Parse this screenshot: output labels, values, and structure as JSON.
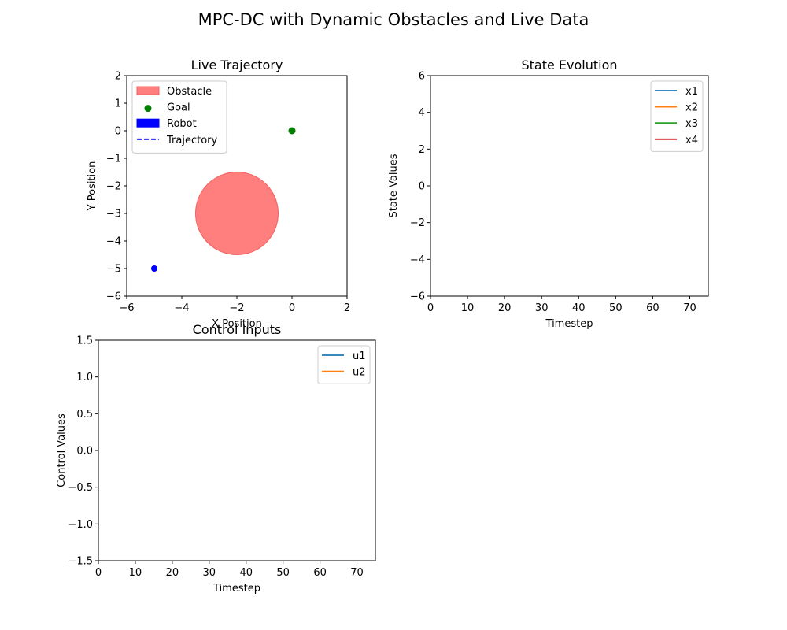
{
  "figure": {
    "suptitle": "MPC-DC with Dynamic Obstacles and Live Data"
  },
  "chart_data": [
    {
      "type": "scatter",
      "title": "Live Trajectory",
      "xlabel": "X Position",
      "ylabel": "Y Position",
      "xlim": [
        -6,
        2
      ],
      "ylim": [
        -6,
        2
      ],
      "xticks": [
        -6,
        -4,
        -2,
        0,
        2
      ],
      "yticks": [
        -6,
        -5,
        -4,
        -3,
        -2,
        -1,
        0,
        1,
        2
      ],
      "xtick_labels": [
        "−6",
        "−4",
        "−2",
        "0",
        "2"
      ],
      "ytick_labels": [
        "−6",
        "−5",
        "−4",
        "−3",
        "−2",
        "−1",
        "0",
        "1",
        "2"
      ],
      "obstacle": {
        "center": [
          -2,
          -3
        ],
        "radius": 1.5,
        "color": "#ff7f7f"
      },
      "goal": {
        "point": [
          0,
          0
        ],
        "color": "#008000"
      },
      "robot": {
        "point": [
          -5,
          -5
        ],
        "color": "#0000ff"
      },
      "trajectory": {
        "x": [],
        "y": [],
        "color": "#0000ff"
      },
      "legend": {
        "position": "upper-left",
        "entries": [
          {
            "label": "Obstacle",
            "kind": "patch",
            "color": "#ff7f7f"
          },
          {
            "label": "Goal",
            "kind": "marker",
            "color": "#008000"
          },
          {
            "label": "Robot",
            "kind": "patch",
            "color": "#0000ff"
          },
          {
            "label": "Trajectory",
            "kind": "dashed",
            "color": "#0000ff"
          }
        ]
      },
      "grid": false
    },
    {
      "type": "line",
      "title": "State Evolution",
      "xlabel": "Timestep",
      "ylabel": "State Values",
      "xlim": [
        0,
        75
      ],
      "ylim": [
        -6,
        6
      ],
      "xticks": [
        0,
        10,
        20,
        30,
        40,
        50,
        60,
        70
      ],
      "yticks": [
        -6,
        -4,
        -2,
        0,
        2,
        4,
        6
      ],
      "xtick_labels": [
        "0",
        "10",
        "20",
        "30",
        "40",
        "50",
        "60",
        "70"
      ],
      "ytick_labels": [
        "−6",
        "−4",
        "−2",
        "0",
        "2",
        "4",
        "6"
      ],
      "series": [
        {
          "name": "x1",
          "color": "#1f77b4",
          "values": []
        },
        {
          "name": "x2",
          "color": "#ff7f0e",
          "values": []
        },
        {
          "name": "x3",
          "color": "#2ca02c",
          "values": []
        },
        {
          "name": "x4",
          "color": "#d62728",
          "values": []
        }
      ],
      "legend": {
        "position": "upper-right"
      },
      "grid": false
    },
    {
      "type": "line",
      "title": "Control Inputs",
      "xlabel": "Timestep",
      "ylabel": "Control Values",
      "xlim": [
        0,
        75
      ],
      "ylim": [
        -1.5,
        1.5
      ],
      "xticks": [
        0,
        10,
        20,
        30,
        40,
        50,
        60,
        70
      ],
      "yticks": [
        -1.5,
        -1.0,
        -0.5,
        0.0,
        0.5,
        1.0,
        1.5
      ],
      "xtick_labels": [
        "0",
        "10",
        "20",
        "30",
        "40",
        "50",
        "60",
        "70"
      ],
      "ytick_labels": [
        "−1.5",
        "−1.0",
        "−0.5",
        "0.0",
        "0.5",
        "1.0",
        "1.5"
      ],
      "series": [
        {
          "name": "u1",
          "color": "#1f77b4",
          "values": []
        },
        {
          "name": "u2",
          "color": "#ff7f0e",
          "values": []
        }
      ],
      "legend": {
        "position": "upper-right"
      },
      "grid": false
    }
  ]
}
